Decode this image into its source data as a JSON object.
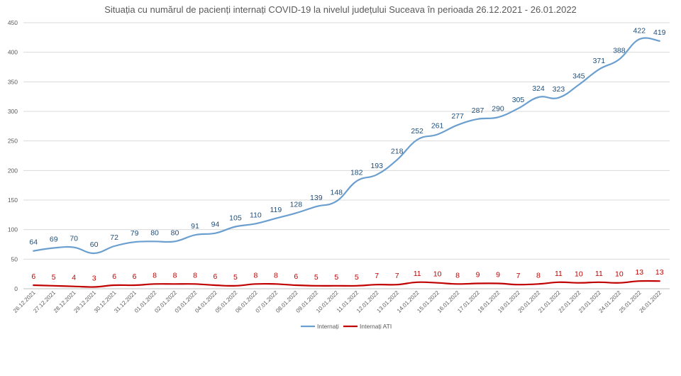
{
  "chart_data": {
    "type": "line",
    "title": "Situația cu numărul de pacienți internați COVID-19 la nivelul județului Suceava în perioada 26.12.2021 - 26.01.2022",
    "xlabel": "",
    "ylabel": "",
    "ylim": [
      0,
      450
    ],
    "yticks": [
      0,
      50,
      100,
      150,
      200,
      250,
      300,
      350,
      400,
      450
    ],
    "grid": "horizontal",
    "legend_position": "bottom",
    "categories": [
      "26.12.2021",
      "27.12.2021",
      "28.12.2021",
      "29.12.2021",
      "30.12.2021",
      "31.12.2021",
      "01.01.2022",
      "02.01.2022",
      "03.01.2022",
      "04.01.2022",
      "05.01.2022",
      "06.01.2022",
      "07.01.2022",
      "08.01.2022",
      "09.01.2022",
      "10.01.2022",
      "11.01.2022",
      "12.01.2022",
      "13.01.2022",
      "14.01.2022",
      "15.01.2022",
      "16.01.2022",
      "17.01.2022",
      "18.01.2022",
      "19.01.2022",
      "20.01.2022",
      "21.01.2022",
      "22.01.2022",
      "23.01.2022",
      "24.01.2022",
      "25.01.2022",
      "26.01.2022"
    ],
    "series": [
      {
        "name": "Internați",
        "color": "#6b9fcf",
        "label_color": "#1f4e79",
        "values": [
          64,
          69,
          70,
          60,
          72,
          79,
          80,
          80,
          91,
          94,
          105,
          110,
          119,
          128,
          139,
          148,
          182,
          193,
          218,
          252,
          261,
          277,
          287,
          290,
          305,
          324,
          323,
          345,
          371,
          388,
          422,
          419
        ]
      },
      {
        "name": "Internați ATI",
        "color": "#c00000",
        "label_color": "#c00000",
        "values": [
          6,
          5,
          4,
          3,
          6,
          6,
          8,
          8,
          8,
          6,
          5,
          8,
          8,
          6,
          5,
          5,
          5,
          7,
          7,
          11,
          10,
          8,
          9,
          9,
          7,
          8,
          11,
          10,
          11,
          10,
          13,
          13
        ]
      }
    ]
  }
}
